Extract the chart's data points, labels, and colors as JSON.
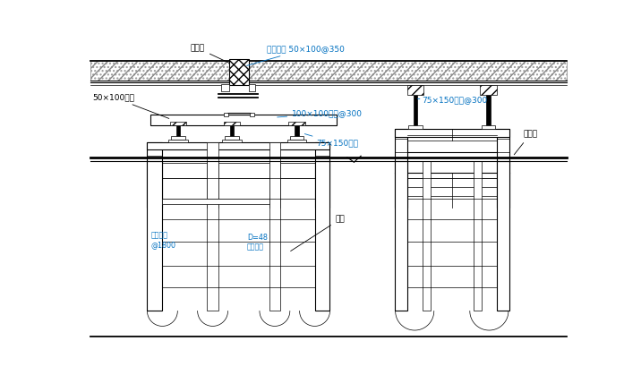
{
  "bg_color": "#ffffff",
  "line_color": "#000000",
  "annotation_color": "#0070C0",
  "fig_width": 7.16,
  "fig_height": 4.38,
  "labels": {
    "heban": "胶合板",
    "lidang": "立档方木 50×100@350",
    "50x100": "50×100方木",
    "100x100": "100×100方木@300",
    "75x150_left": "75×150方木",
    "75x150_right": "75×150方木@300",
    "ban_men_jia": "半门架",
    "men_jia": "门架",
    "shuiping": "水平钉管\n@1800",
    "d48": "D=48\n钉管立杆"
  }
}
